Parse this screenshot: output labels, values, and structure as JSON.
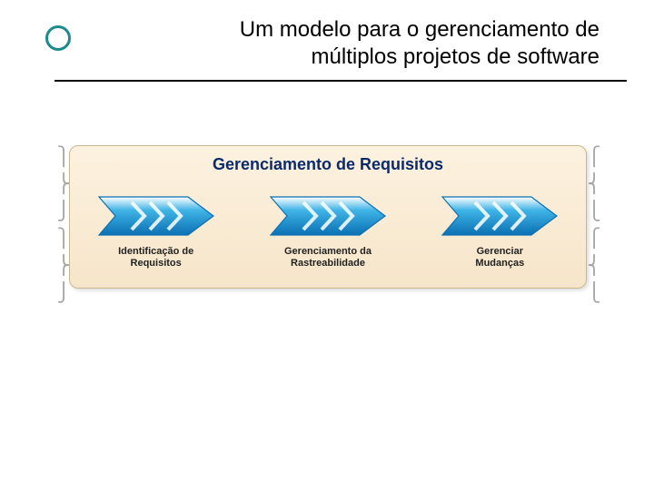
{
  "slide": {
    "title_line1": "Um modelo para o gerenciamento de",
    "title_line2": "múltiplos projetos de software",
    "title_fontsize": 24,
    "title_color": "#000000",
    "rule_color": "#000000",
    "bullet_ring_color": "#1b8a8a",
    "background_color": "#ffffff"
  },
  "diagram": {
    "type": "infographic",
    "title": "Gerenciamento de Requisitos",
    "title_fontsize": 18,
    "title_color": "#0a2a6b",
    "panel_bg_top": "#fdf2e0",
    "panel_bg_bottom": "#f6e5c9",
    "panel_border": "#c9b88f",
    "panel_radius": 10,
    "arrow_gradient_top": "#ffffff",
    "arrow_gradient_mid": "#3fb4e6",
    "arrow_gradient_bottom": "#0b70b3",
    "arrow_stroke": "#0b70b3",
    "chevron_color": "#ffffff",
    "blocks": [
      {
        "label_l1": "Identificação de",
        "label_l2": "Requisitos"
      },
      {
        "label_l1": "Gerenciamento da",
        "label_l2": "Rastreabilidade"
      },
      {
        "label_l1": "Gerenciar",
        "label_l2": "Mudanças"
      }
    ],
    "block_label_fontsize": 11,
    "block_label_color": "#222222"
  },
  "braces": {
    "left_glyphs": "⎫\n⎬\n⎭\n⎫\n⎬\n⎭",
    "right_glyphs": "⎧\n⎨\n⎩\n⎧\n⎨\n⎩",
    "color": "#6b6b6b"
  }
}
